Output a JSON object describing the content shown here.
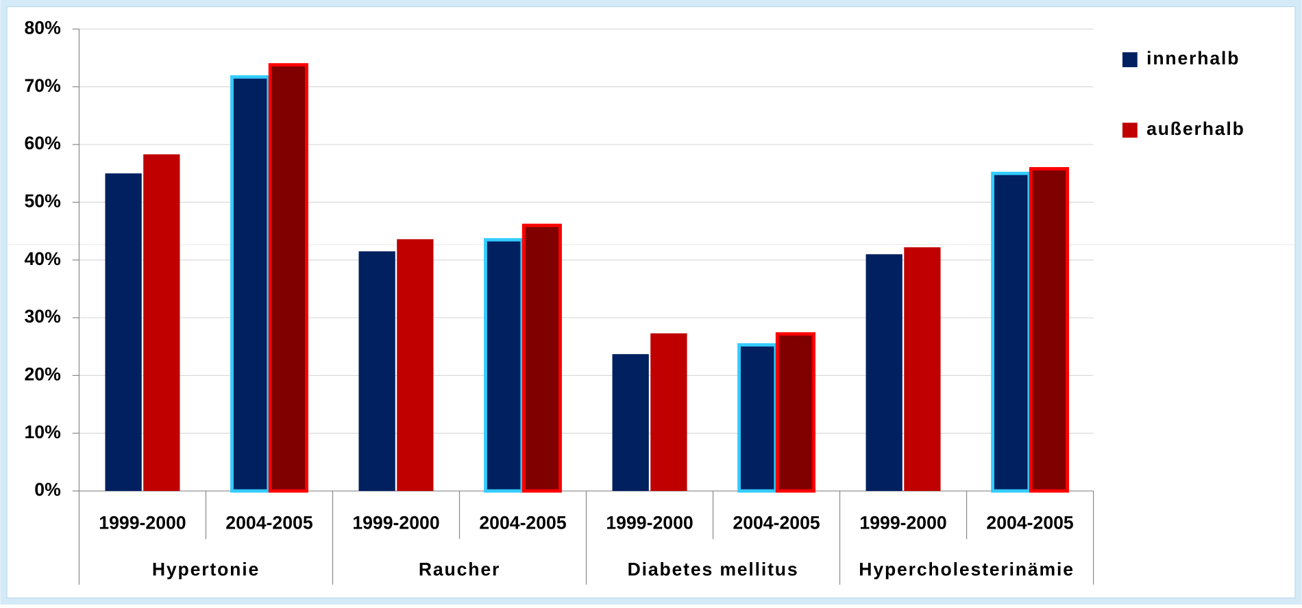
{
  "chart_data": {
    "type": "bar",
    "categories": [
      "1999-2000",
      "2004-2005",
      "1999-2000",
      "2004-2005",
      "1999-2000",
      "2004-2005",
      "1999-2000",
      "2004-2005"
    ],
    "groups": [
      "Hypertonie",
      "Raucher",
      "Diabetes mellitus",
      "Hypercholesterinämie"
    ],
    "highlight": [
      false,
      true,
      false,
      true,
      false,
      true,
      false,
      true
    ],
    "series": [
      {
        "name": "innerhalb",
        "color": "#002060",
        "highlight_fill": "#002060",
        "highlight_outline": "#33ccff",
        "values": [
          55,
          71.7,
          41.5,
          43.5,
          23.7,
          25.3,
          41,
          55
        ]
      },
      {
        "name": "außerhalb",
        "color": "#c00000",
        "highlight_fill": "#800000",
        "highlight_outline": "#ff0000",
        "values": [
          58.3,
          73.8,
          43.6,
          46,
          27.3,
          27.2,
          42.2,
          55.8
        ]
      }
    ],
    "ylim": [
      0,
      80
    ],
    "yticks": [
      {
        "value": 0,
        "label": "0%"
      },
      {
        "value": 10,
        "label": "10%"
      },
      {
        "value": 20,
        "label": "20%"
      },
      {
        "value": 30,
        "label": "30%"
      },
      {
        "value": 40,
        "label": "40%"
      },
      {
        "value": 50,
        "label": "50%"
      },
      {
        "value": 60,
        "label": "60%"
      },
      {
        "value": 70,
        "label": "70%"
      },
      {
        "value": 80,
        "label": "80%"
      }
    ],
    "grid": true,
    "legend": "right"
  }
}
